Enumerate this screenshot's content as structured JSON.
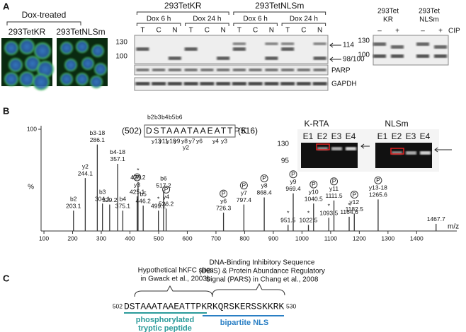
{
  "panel_a": {
    "label": "A",
    "image_group": "Dox-treated",
    "images": [
      "293TetKR",
      "293TetNLSm"
    ],
    "blot": {
      "groups": [
        "293TetKR",
        "293TetNLSm"
      ],
      "timepoints": [
        "Dox 6 h",
        "Dox 24 h",
        "Dox 6 h",
        "Dox 24 h"
      ],
      "lanes": [
        "T",
        "C",
        "N",
        "T",
        "C",
        "N",
        "T",
        "C",
        "N",
        "T",
        "C",
        "N"
      ],
      "markers": [
        "130",
        "100"
      ],
      "bands": [
        "114",
        "98/100"
      ],
      "rows": [
        "PARP",
        "GAPDH"
      ]
    },
    "cip_blot": {
      "groups": [
        [
          "293Tet",
          "KR"
        ],
        [
          "293Tet",
          "NLSm"
        ]
      ],
      "lanes": [
        "–",
        "+",
        "–",
        "+"
      ],
      "treatment": "CIP",
      "markers": [
        "130",
        "100"
      ]
    }
  },
  "panel_b": {
    "label": "B",
    "spectrum": {
      "xlim": [
        90,
        1540
      ],
      "xticks": [
        100,
        200,
        300,
        400,
        500,
        600,
        700,
        800,
        900,
        1000,
        1100,
        1200,
        1300,
        1400
      ],
      "ylim": [
        0,
        100
      ],
      "yticks": [
        100
      ],
      "y_label": "%",
      "x_label": "m/z",
      "phospho_mark": "P",
      "color": "#333333",
      "peaks": [
        {
          "mz": 203.1,
          "ion": "b2",
          "intensity": 20
        },
        {
          "mz": 244.1,
          "ion": "y2",
          "intensity": 52
        },
        {
          "mz": 286.1,
          "ion": "b3-18",
          "intensity": 85
        },
        {
          "mz": 304.1,
          "ion": "b3",
          "intensity": 27
        },
        {
          "mz": 329.2,
          "intensity": 26
        },
        {
          "mz": 357.1,
          "ion": "b4-18",
          "intensity": 66
        },
        {
          "mz": 375.1,
          "ion": "b4",
          "intensity": 20
        },
        {
          "mz": 425.1,
          "ion": "y3",
          "intensity": 34,
          "phospho": true
        },
        {
          "mz": 428.2,
          "ion": "*",
          "intensity": 48
        },
        {
          "mz": 446.2,
          "ion": "b5",
          "intensity": 25
        },
        {
          "mz": 499.2,
          "ion": "*",
          "intensity": 20
        },
        {
          "mz": 517.2,
          "ion": "b6",
          "intensity": 40
        },
        {
          "mz": 526.2,
          "ion": "y4",
          "intensity": 22,
          "phospho": true
        },
        {
          "mz": 726.3,
          "ion": "y6",
          "intensity": 18,
          "phospho": true
        },
        {
          "mz": 797.4,
          "ion": "y7",
          "intensity": 26,
          "phospho": true
        },
        {
          "mz": 868.4,
          "ion": "y8",
          "intensity": 33,
          "phospho": true
        },
        {
          "mz": 951.5,
          "ion": "*",
          "intensity": 6
        },
        {
          "mz": 969.4,
          "ion": "y9",
          "intensity": 37,
          "phospho": true
        },
        {
          "mz": 1022.5,
          "ion": "*",
          "intensity": 6
        },
        {
          "mz": 1040.5,
          "ion": "y10",
          "intensity": 27,
          "phospho": true
        },
        {
          "mz": 1093.5,
          "ion": "*",
          "intensity": 13
        },
        {
          "mz": 1111.5,
          "ion": "y11",
          "intensity": 30,
          "phospho": true
        },
        {
          "mz": 1164.6,
          "ion": "*",
          "intensity": 14
        },
        {
          "mz": 1182.5,
          "ion": "y12",
          "intensity": 17,
          "phospho": true
        },
        {
          "mz": 1265.6,
          "ion": "y13-18",
          "intensity": 31,
          "phospho": true
        },
        {
          "mz": 1467.7,
          "intensity": 7
        }
      ]
    },
    "peptide": {
      "start": "(502)",
      "sequence": "DSTAAATAAEATTPK",
      "end": "(516)",
      "b_ions": [
        "b2",
        "b3",
        "b4",
        "b5",
        "b6"
      ],
      "y_ions": [
        "y13",
        "y11",
        "y10",
        "y9",
        "y8",
        "y7",
        "y6"
      ],
      "y_ions_end": [
        "y4",
        "y3"
      ],
      "y_last": "y2"
    },
    "gels": {
      "titles": [
        "K-RTA",
        "NLSm"
      ],
      "lanes": [
        "E1",
        "E2",
        "E3",
        "E4"
      ],
      "markers": [
        "130",
        "95"
      ]
    }
  },
  "panel_c": {
    "label": "C",
    "annotation_left": [
      "Hypothetical hKFC sites",
      "in Gwack et al., 2003b"
    ],
    "annotation_right": [
      "DNA-Binding Inhibitory Sequence",
      "(DBIS) & Protein Abundance Regulatory",
      "Signal (PARS) in Chang et al., 2008"
    ],
    "start": "502",
    "sequence": "DSTAAATAAEATTPKRKQRSKERSSKKRK",
    "end": "530",
    "peptide_label": [
      "phosphorylated",
      "tryptic peptide"
    ],
    "nls_label": "bipartite NLS"
  }
}
